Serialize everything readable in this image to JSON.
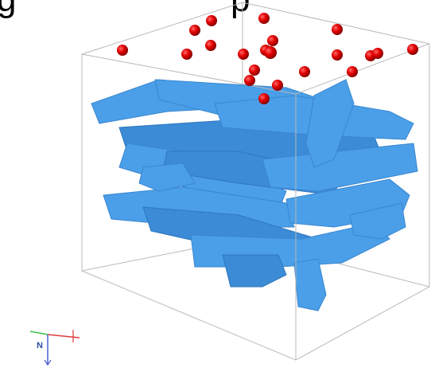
{
  "header": {
    "fragments": [
      "g",
      "p"
    ]
  },
  "axes_triad": {
    "label": "N"
  }
}
